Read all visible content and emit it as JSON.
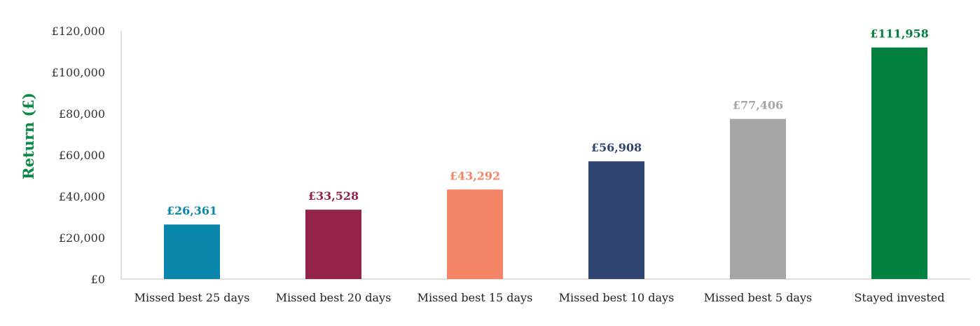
{
  "chart_data": {
    "type": "bar",
    "title": "",
    "xlabel": "",
    "ylabel": "Return (£)",
    "ylabel_color": "#0b8a47",
    "ylim": [
      0,
      120000
    ],
    "yticks": [
      0,
      20000,
      40000,
      60000,
      80000,
      100000,
      120000
    ],
    "ytick_labels": [
      "£0",
      "£20,000",
      "£40,000",
      "£60,000",
      "£80,000",
      "£100,000",
      "£120,000"
    ],
    "grid": false,
    "legend": "none",
    "categories": [
      "Missed best 25 days",
      "Missed best 20 days",
      "Missed best 15 days",
      "Missed best 10 days",
      "Missed best 5 days",
      "Stayed invested"
    ],
    "values": [
      26361,
      33528,
      43292,
      56908,
      77406,
      111958
    ],
    "value_labels": [
      "£26,361",
      "£33,528",
      "£43,292",
      "£56,908",
      "£77,406",
      "£111,958"
    ],
    "colors": [
      "#0a86aa",
      "#93224c",
      "#f48566",
      "#304472",
      "#a6a6a6",
      "#028040"
    ]
  }
}
